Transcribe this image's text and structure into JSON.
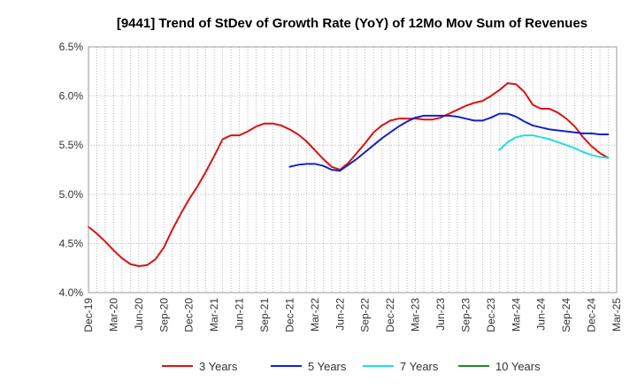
{
  "chart_data": {
    "type": "line",
    "title": "[9441]  Trend of StDev of Growth Rate (YoY) of 12Mo Mov Sum of Revenues",
    "xlabel": "",
    "ylabel": "",
    "ylim": [
      4.0,
      6.5
    ],
    "y_ticks": [
      "4.0%",
      "4.5%",
      "5.0%",
      "5.5%",
      "6.0%",
      "6.5%"
    ],
    "x_tick_labels": [
      "Dec-19",
      "Mar-20",
      "Jun-20",
      "Sep-20",
      "Dec-20",
      "Mar-21",
      "Jun-21",
      "Sep-21",
      "Dec-21",
      "Mar-22",
      "Jun-22",
      "Sep-22",
      "Dec-22",
      "Mar-23",
      "Jun-23",
      "Sep-23",
      "Dec-23",
      "Mar-24",
      "Jun-24",
      "Sep-24",
      "Dec-24",
      "Mar-25"
    ],
    "x_start": "Dec-19",
    "months_total": 63,
    "grid": true,
    "legend_position": "bottom",
    "series": [
      {
        "name": "3 Years",
        "color": "#dd1111",
        "start_month_index": 0,
        "values": [
          4.67,
          4.6,
          4.52,
          4.43,
          4.35,
          4.29,
          4.27,
          4.28,
          4.34,
          4.46,
          4.64,
          4.8,
          4.95,
          5.08,
          5.23,
          5.39,
          5.56,
          5.6,
          5.6,
          5.64,
          5.69,
          5.72,
          5.72,
          5.7,
          5.66,
          5.61,
          5.54,
          5.45,
          5.36,
          5.28,
          5.25,
          5.32,
          5.42,
          5.52,
          5.63,
          5.7,
          5.75,
          5.77,
          5.77,
          5.77,
          5.76,
          5.76,
          5.78,
          5.82,
          5.86,
          5.9,
          5.93,
          5.95,
          6.0,
          6.06,
          6.13,
          6.12,
          6.04,
          5.91,
          5.87,
          5.87,
          5.83,
          5.77,
          5.69,
          5.58,
          5.49,
          5.42,
          5.37
        ]
      },
      {
        "name": "5 Years",
        "color": "#1122cc",
        "start_month_index": 24,
        "values": [
          5.28,
          5.3,
          5.31,
          5.31,
          5.29,
          5.25,
          5.24,
          5.3,
          5.36,
          5.43,
          5.5,
          5.57,
          5.63,
          5.69,
          5.74,
          5.78,
          5.8,
          5.8,
          5.8,
          5.8,
          5.79,
          5.77,
          5.75,
          5.75,
          5.78,
          5.82,
          5.82,
          5.79,
          5.74,
          5.7,
          5.68,
          5.66,
          5.65,
          5.64,
          5.63,
          5.62,
          5.62,
          5.61,
          5.61
        ]
      },
      {
        "name": "7 Years",
        "color": "#22dddd",
        "start_month_index": 49,
        "values": [
          5.45,
          5.53,
          5.58,
          5.6,
          5.6,
          5.58,
          5.56,
          5.53,
          5.5,
          5.47,
          5.43,
          5.4,
          5.38,
          5.37
        ]
      },
      {
        "name": "10 Years",
        "color": "#228822",
        "start_month_index": null,
        "values": []
      }
    ]
  }
}
